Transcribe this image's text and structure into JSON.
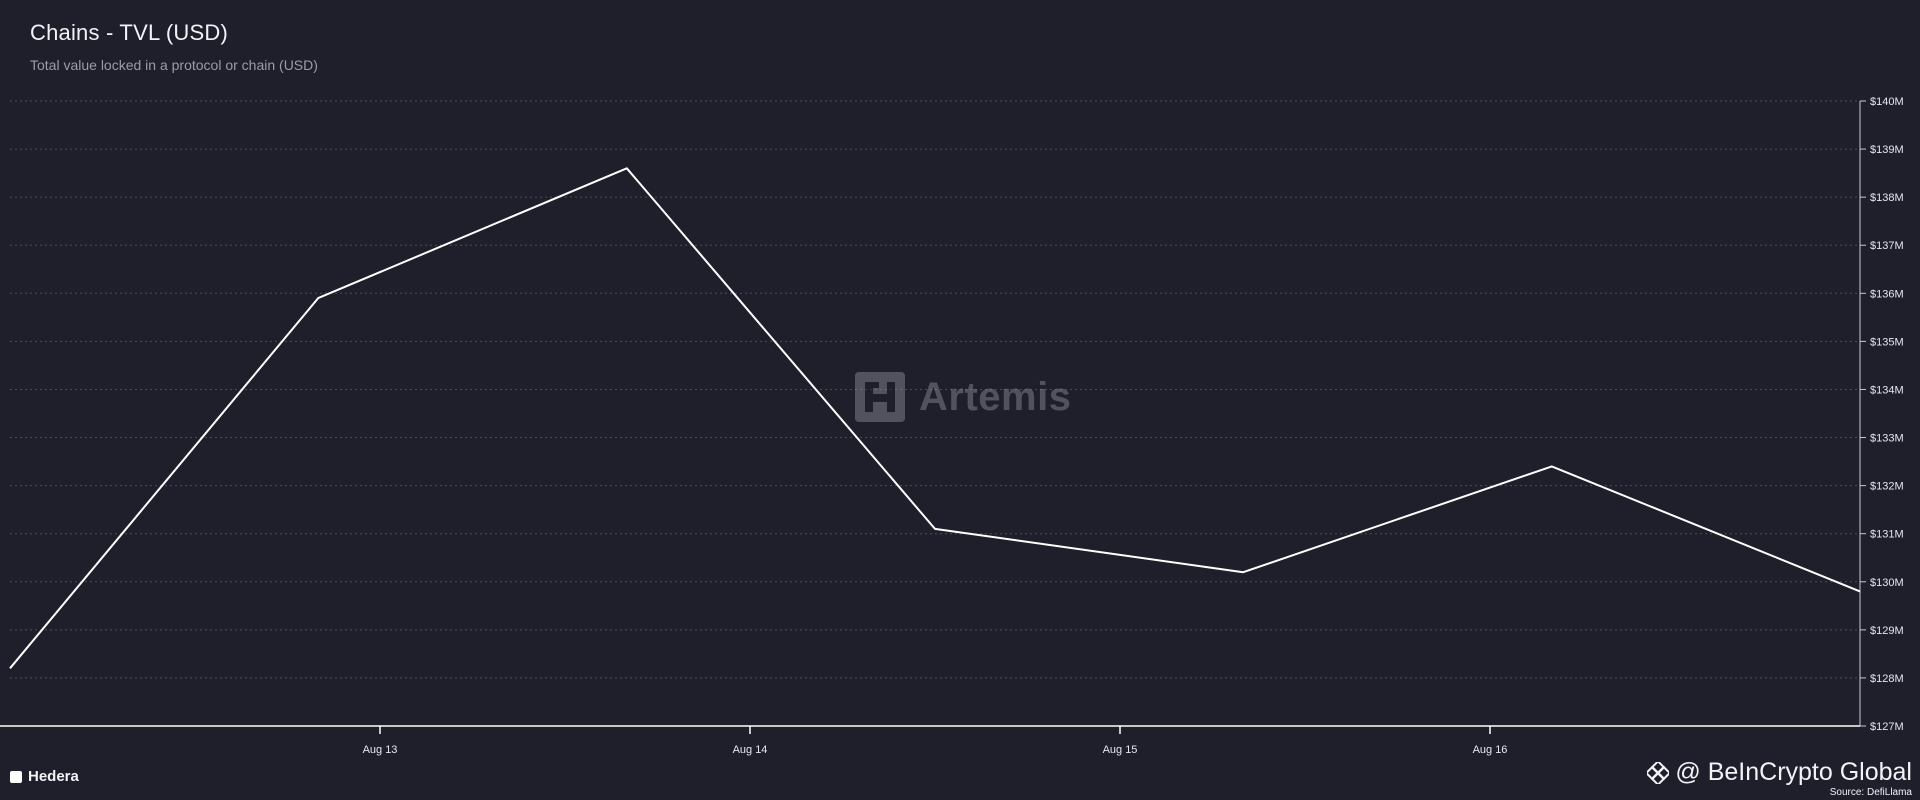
{
  "header": {
    "title": "Chains - TVL (USD)",
    "subtitle": "Total value locked in a protocol or chain (USD)"
  },
  "watermark": {
    "text": "Artemis",
    "icon": "artemis-logo-icon"
  },
  "branding": {
    "text": "@ BeInCrypto Global",
    "icon": "beincrypto-diamond-icon",
    "source": "Source: DefiLlama"
  },
  "colors": {
    "background": "#1e1f2b",
    "line": "#ffffff",
    "grid": "#4a4c5c",
    "axis_text": "#e6e7ee"
  },
  "chart_data": {
    "type": "line",
    "title": "Chains - TVL (USD)",
    "subtitle": "Total value locked in a protocol or chain (USD)",
    "x_ticks": [
      "Aug 13",
      "Aug 14",
      "Aug 15",
      "Aug 16"
    ],
    "y_ticks": [
      "$127M",
      "$128M",
      "$129M",
      "$130M",
      "$131M",
      "$132M",
      "$133M",
      "$134M",
      "$135M",
      "$136M",
      "$137M",
      "$138M",
      "$139M",
      "$140M"
    ],
    "ylim": [
      127,
      140
    ],
    "y_unit": "$M",
    "grid": true,
    "legend_position": "bottom-left",
    "series": [
      {
        "name": "Hedera",
        "x": [
          "Aug 12 00:00",
          "Aug 12 20:00",
          "Aug 13 16:00",
          "Aug 14 12:00",
          "Aug 15 08:00",
          "Aug 16 04:00",
          "Aug 17 00:00"
        ],
        "x_days": [
          12.0,
          12.833,
          13.667,
          14.5,
          15.333,
          16.167,
          17.0
        ],
        "values": [
          128.2,
          135.9,
          138.6,
          131.1,
          130.2,
          132.4,
          129.8
        ]
      }
    ]
  }
}
